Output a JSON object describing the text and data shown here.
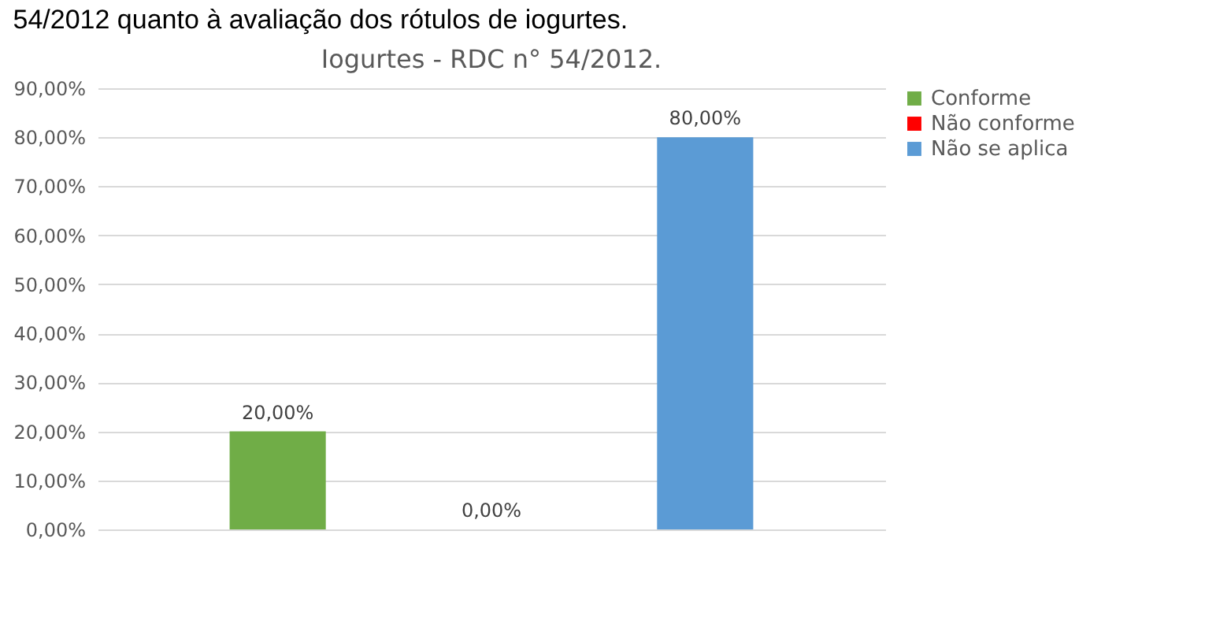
{
  "chart_data": {
    "type": "bar",
    "title": "Iogurtes - RDC n° 54/2012.",
    "annotations": [
      "54/2012 quanto à avaliação dos rótulos de iogurtes."
    ],
    "categories": [
      null
    ],
    "series": [
      {
        "name": "Conforme",
        "color": "#70ad47",
        "values": [
          20
        ],
        "value_labels": [
          "20,00%"
        ]
      },
      {
        "name": "Não conforme",
        "color": "#ff0000",
        "values": [
          0
        ],
        "value_labels": [
          "0,00%"
        ]
      },
      {
        "name": "Não se aplica",
        "color": "#5b9bd5",
        "values": [
          80
        ],
        "value_labels": [
          "80,00%"
        ]
      }
    ],
    "ylim": [
      0,
      90
    ],
    "yticks": [
      {
        "value": 0,
        "label": "0,00%"
      },
      {
        "value": 10,
        "label": "10,00%"
      },
      {
        "value": 20,
        "label": "20,00%"
      },
      {
        "value": 30,
        "label": "30,00%"
      },
      {
        "value": 40,
        "label": "40,00%"
      },
      {
        "value": 50,
        "label": "50,00%"
      },
      {
        "value": 60,
        "label": "60,00%"
      },
      {
        "value": 70,
        "label": "70,00%"
      },
      {
        "value": 80,
        "label": "80,00%"
      },
      {
        "value": 90,
        "label": "90,00%"
      }
    ],
    "grid": "y",
    "legend": "right",
    "tick_labels": "y"
  }
}
